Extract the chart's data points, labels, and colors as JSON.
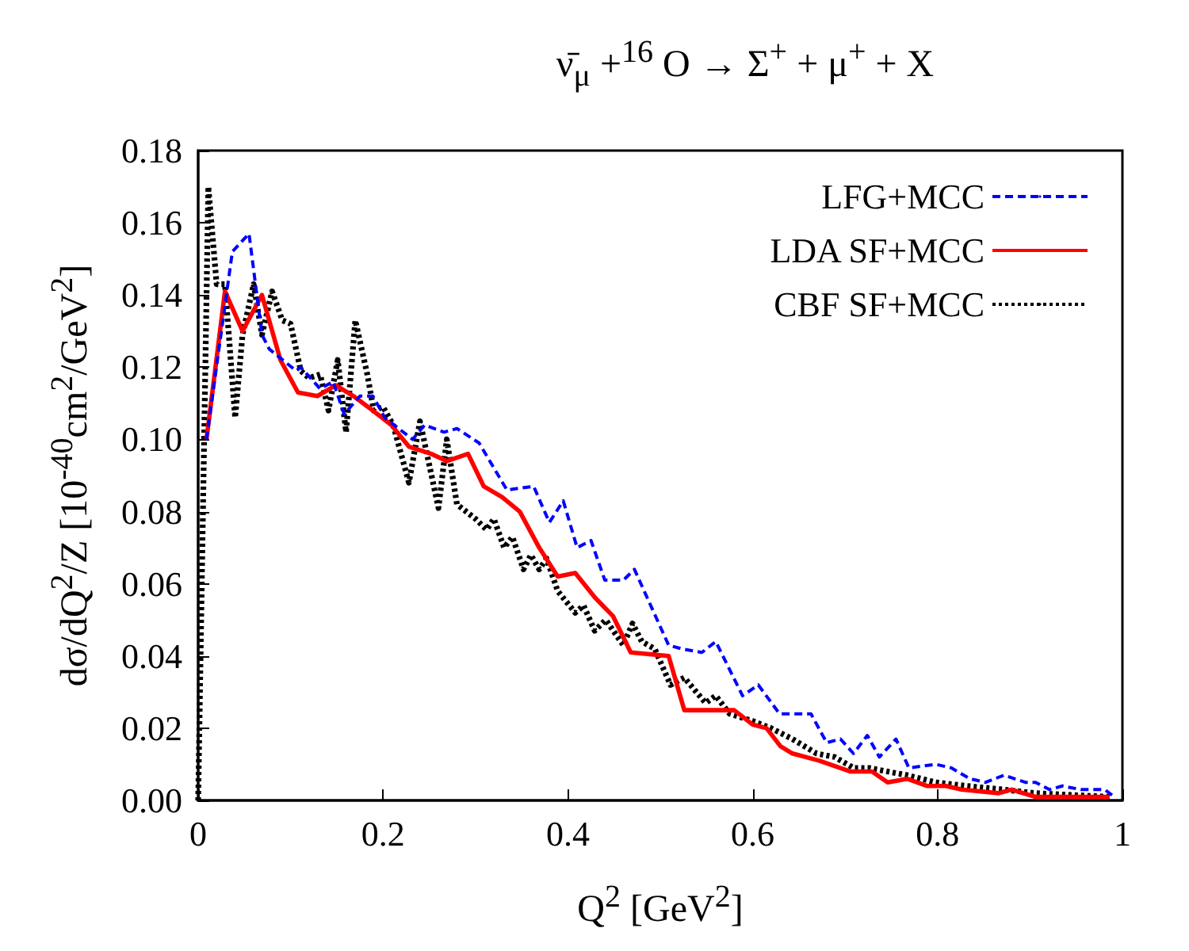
{
  "chart_data": {
    "type": "line",
    "title": "ν̄$_{μ}$ +$^{16}$ O → Σ$^{+}$ + μ$^{+}$ + X",
    "xlabel": "Q$^{2}$ [GeV$^{2}$]",
    "ylabel": "dσ/dQ$^{2}$/Z [10$^{-40}$cm$^{2}$/GeV$^{2}$]",
    "xlim": [
      0,
      1
    ],
    "xticks": [
      0,
      0.2,
      0.4,
      0.6,
      0.8,
      1
    ],
    "ylim": [
      0,
      0.18
    ],
    "yticks": [
      {
        "value": 0,
        "label": "0.00"
      },
      {
        "value": 0.02,
        "label": "0.02"
      },
      {
        "value": 0.04,
        "label": "0.04"
      },
      {
        "value": 0.06,
        "label": "0.06"
      },
      {
        "value": 0.08,
        "label": "0.08"
      },
      {
        "value": 0.1,
        "label": "0.10"
      },
      {
        "value": 0.12,
        "label": "0.12"
      },
      {
        "value": 0.14,
        "label": "0.14"
      },
      {
        "value": 0.16,
        "label": "0.16"
      },
      {
        "value": 0.18,
        "label": "0.18"
      }
    ],
    "grid": false,
    "legend": "top right",
    "marker": "none",
    "series": [
      {
        "name": "LFG+MCC",
        "color": "#0000ff",
        "line_style": "dashed",
        "x": [
          0.009,
          0.037,
          0.055,
          0.069,
          0.077,
          0.106,
          0.111,
          0.132,
          0.146,
          0.158,
          0.175,
          0.189,
          0.202,
          0.232,
          0.245,
          0.266,
          0.28,
          0.304,
          0.334,
          0.363,
          0.38,
          0.395,
          0.41,
          0.425,
          0.44,
          0.46,
          0.472,
          0.509,
          0.523,
          0.545,
          0.56,
          0.589,
          0.606,
          0.629,
          0.643,
          0.663,
          0.68,
          0.695,
          0.709,
          0.724,
          0.737,
          0.755,
          0.769,
          0.798,
          0.815,
          0.835,
          0.852,
          0.872,
          0.895,
          0.906,
          0.921,
          0.935,
          0.955,
          0.981,
          0.991
        ],
        "values": [
          0.1,
          0.152,
          0.157,
          0.129,
          0.125,
          0.119,
          0.12,
          0.114,
          0.116,
          0.107,
          0.112,
          0.112,
          0.106,
          0.1,
          0.104,
          0.102,
          0.103,
          0.099,
          0.086,
          0.087,
          0.077,
          0.083,
          0.07,
          0.072,
          0.061,
          0.061,
          0.064,
          0.043,
          0.042,
          0.041,
          0.044,
          0.029,
          0.032,
          0.024,
          0.024,
          0.024,
          0.016,
          0.017,
          0.013,
          0.018,
          0.012,
          0.017,
          0.009,
          0.01,
          0.009,
          0.006,
          0.005,
          0.007,
          0.005,
          0.005,
          0.003,
          0.004,
          0.003,
          0.003,
          0.001
        ]
      },
      {
        "name": "LDA SF+MCC",
        "color": "#ff0000",
        "line_style": "solid",
        "x": [
          0.009,
          0.029,
          0.048,
          0.069,
          0.089,
          0.108,
          0.129,
          0.149,
          0.168,
          0.189,
          0.209,
          0.228,
          0.252,
          0.269,
          0.292,
          0.309,
          0.329,
          0.348,
          0.369,
          0.389,
          0.408,
          0.43,
          0.449,
          0.468,
          0.509,
          0.526,
          0.549,
          0.569,
          0.58,
          0.6,
          0.615,
          0.63,
          0.643,
          0.672,
          0.706,
          0.729,
          0.746,
          0.767,
          0.789,
          0.809,
          0.826,
          0.866,
          0.88,
          0.906,
          0.986
        ],
        "values": [
          0.1,
          0.141,
          0.13,
          0.14,
          0.122,
          0.113,
          0.112,
          0.115,
          0.112,
          0.108,
          0.104,
          0.098,
          0.096,
          0.094,
          0.096,
          0.087,
          0.084,
          0.08,
          0.07,
          0.062,
          0.063,
          0.056,
          0.051,
          0.041,
          0.04,
          0.025,
          0.025,
          0.025,
          0.025,
          0.021,
          0.02,
          0.015,
          0.013,
          0.011,
          0.008,
          0.008,
          0.005,
          0.006,
          0.004,
          0.004,
          0.003,
          0.002,
          0.003,
          0.001,
          0.001
        ]
      },
      {
        "name": "CBF SF+MCC",
        "color": "#000000",
        "line_style": "dotted",
        "x": [
          0,
          0.011,
          0.02,
          0.029,
          0.04,
          0.048,
          0.06,
          0.069,
          0.08,
          0.091,
          0.1,
          0.111,
          0.12,
          0.132,
          0.141,
          0.151,
          0.16,
          0.17,
          0.183,
          0.19,
          0.2,
          0.211,
          0.228,
          0.24,
          0.26,
          0.269,
          0.28,
          0.3,
          0.312,
          0.32,
          0.331,
          0.34,
          0.352,
          0.36,
          0.369,
          0.377,
          0.389,
          0.408,
          0.417,
          0.429,
          0.441,
          0.46,
          0.47,
          0.48,
          0.494,
          0.511,
          0.526,
          0.549,
          0.56,
          0.575,
          0.6,
          0.62,
          0.643,
          0.669,
          0.689,
          0.709,
          0.726,
          0.746,
          0.767,
          0.798,
          0.832,
          0.872,
          0.906,
          0.986
        ],
        "values": [
          0,
          0.17,
          0.143,
          0.143,
          0.106,
          0.129,
          0.143,
          0.129,
          0.141,
          0.133,
          0.132,
          0.119,
          0.117,
          0.118,
          0.108,
          0.122,
          0.102,
          0.133,
          0.118,
          0.108,
          0.109,
          0.104,
          0.088,
          0.105,
          0.081,
          0.1,
          0.082,
          0.078,
          0.075,
          0.078,
          0.07,
          0.073,
          0.064,
          0.068,
          0.064,
          0.067,
          0.058,
          0.052,
          0.054,
          0.047,
          0.05,
          0.043,
          0.049,
          0.044,
          0.042,
          0.032,
          0.034,
          0.027,
          0.029,
          0.024,
          0.022,
          0.02,
          0.017,
          0.013,
          0.012,
          0.009,
          0.009,
          0.008,
          0.007,
          0.005,
          0.004,
          0.003,
          0.002,
          0.001
        ]
      }
    ]
  }
}
